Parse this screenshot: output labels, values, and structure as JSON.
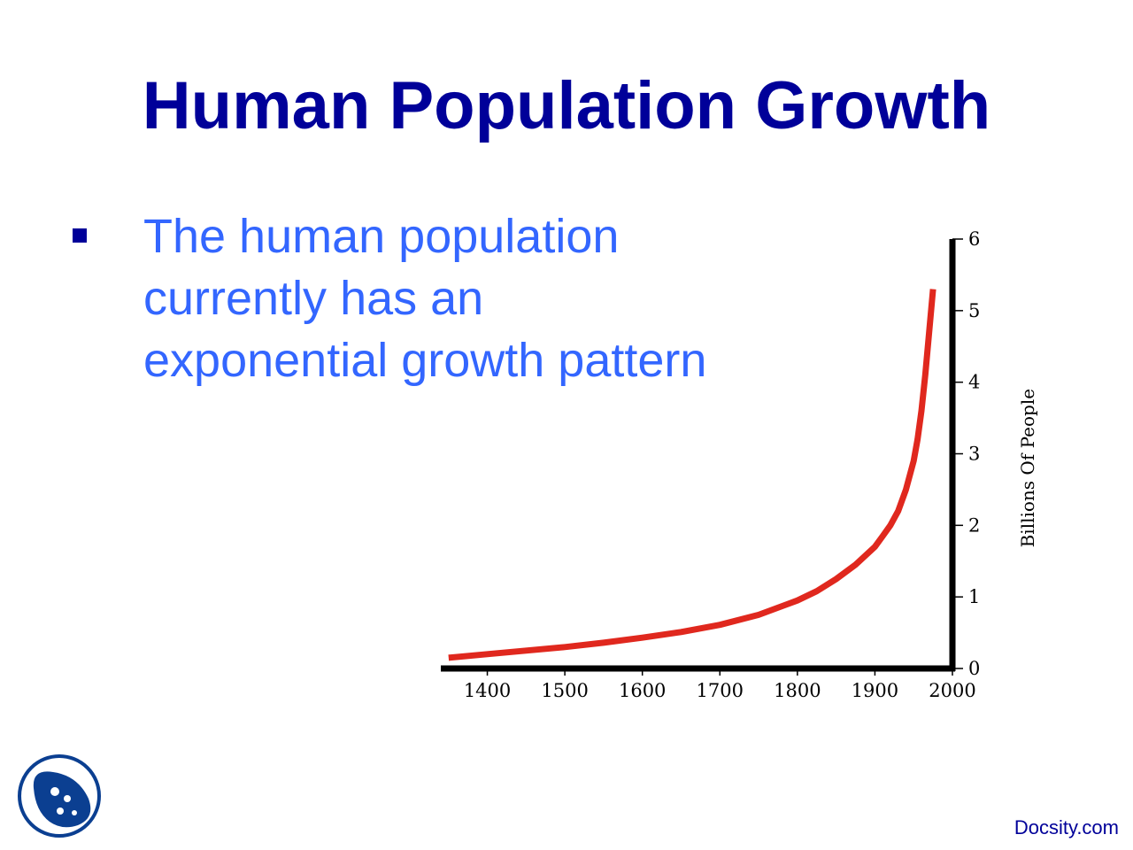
{
  "slide": {
    "title": "Human Population Growth",
    "bullet": "The human population currently has an exponential growth pattern",
    "credit": "Docsity.com",
    "colors": {
      "title": "#000099",
      "bullet_text": "#3366ff",
      "curve": "#e0281e"
    }
  },
  "chart_data": {
    "type": "line",
    "title": "",
    "xlabel": "",
    "ylabel": "Billions Of People",
    "xlim": [
      1340,
      2000
    ],
    "ylim": [
      0,
      6
    ],
    "x_ticks": [
      "1400",
      "1500",
      "1600",
      "1700",
      "1800",
      "1900",
      "2000"
    ],
    "y_ticks": [
      "0",
      "1",
      "2",
      "3",
      "4",
      "5",
      "6"
    ],
    "grid": false,
    "legend": "none",
    "series": [
      {
        "x": [
          1350,
          1400,
          1450,
          1500,
          1550,
          1600,
          1650,
          1700,
          1750,
          1800,
          1825,
          1850,
          1875,
          1900,
          1910,
          1920,
          1930,
          1940,
          1950,
          1955,
          1960,
          1965,
          1970,
          1975
        ],
        "y": [
          0.15,
          0.2,
          0.25,
          0.3,
          0.36,
          0.43,
          0.51,
          0.61,
          0.75,
          0.95,
          1.08,
          1.25,
          1.45,
          1.7,
          1.85,
          2.0,
          2.2,
          2.5,
          2.9,
          3.2,
          3.6,
          4.1,
          4.7,
          5.3
        ]
      }
    ]
  }
}
